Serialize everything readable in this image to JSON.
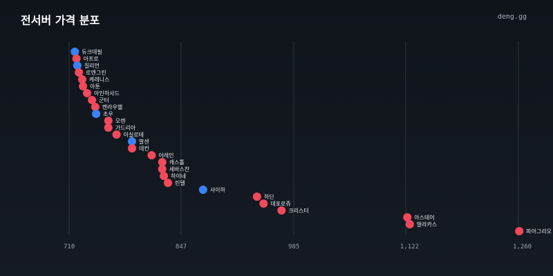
{
  "header": {
    "title": "전서버 가격 분포",
    "brand": "deng.gg"
  },
  "colors": {
    "background": "#12171e",
    "grid": "#3a414a",
    "red_series": "#f2495c",
    "blue_series": "#3b82f6",
    "text": "#e6e9ee"
  },
  "chart_data": {
    "type": "scatter",
    "title": "전서버 가격 분포",
    "xlabel": "",
    "ylabel": "",
    "xlim": [
      703,
      1275
    ],
    "x_ticks": [
      710,
      847,
      985,
      1122,
      1260
    ],
    "x_tick_labels": [
      "710",
      "847",
      "985",
      "1,122",
      "1,260"
    ],
    "grid": true,
    "legend": "none",
    "points": [
      {
        "name": "듀크데필",
        "value": 717,
        "color": "blue"
      },
      {
        "name": "아프로",
        "value": 719,
        "color": "red"
      },
      {
        "name": "질리언",
        "value": 720,
        "color": "blue"
      },
      {
        "name": "로엔그린",
        "value": 722,
        "color": "red"
      },
      {
        "name": "케레니스",
        "value": 726,
        "color": "red"
      },
      {
        "name": "아툰",
        "value": 727,
        "color": "red"
      },
      {
        "name": "아인하사드",
        "value": 732,
        "color": "red"
      },
      {
        "name": "군터",
        "value": 738,
        "color": "red"
      },
      {
        "name": "켄라우헬",
        "value": 742,
        "color": "red"
      },
      {
        "name": "조우",
        "value": 743,
        "color": "blue"
      },
      {
        "name": "오렌",
        "value": 758,
        "color": "red"
      },
      {
        "name": "가드리아",
        "value": 758,
        "color": "red"
      },
      {
        "name": "이실로테",
        "value": 768,
        "color": "red"
      },
      {
        "name": "발센",
        "value": 787,
        "color": "blue"
      },
      {
        "name": "데컨",
        "value": 787,
        "color": "red"
      },
      {
        "name": "어레인",
        "value": 811,
        "color": "red"
      },
      {
        "name": "캐스톨",
        "value": 824,
        "color": "red"
      },
      {
        "name": "세바스찬",
        "value": 824,
        "color": "red"
      },
      {
        "name": "하이네",
        "value": 826,
        "color": "red"
      },
      {
        "name": "린델",
        "value": 831,
        "color": "red"
      },
      {
        "name": "사이하",
        "value": 874,
        "color": "blue"
      },
      {
        "name": "하딘",
        "value": 940,
        "color": "red"
      },
      {
        "name": "데포로쥬",
        "value": 948,
        "color": "red"
      },
      {
        "name": "크리스터",
        "value": 970,
        "color": "red"
      },
      {
        "name": "아스테어",
        "value": 1124,
        "color": "red"
      },
      {
        "name": "발라카스",
        "value": 1127,
        "color": "red"
      },
      {
        "name": "파아그리오",
        "value": 1261,
        "color": "red"
      }
    ]
  }
}
